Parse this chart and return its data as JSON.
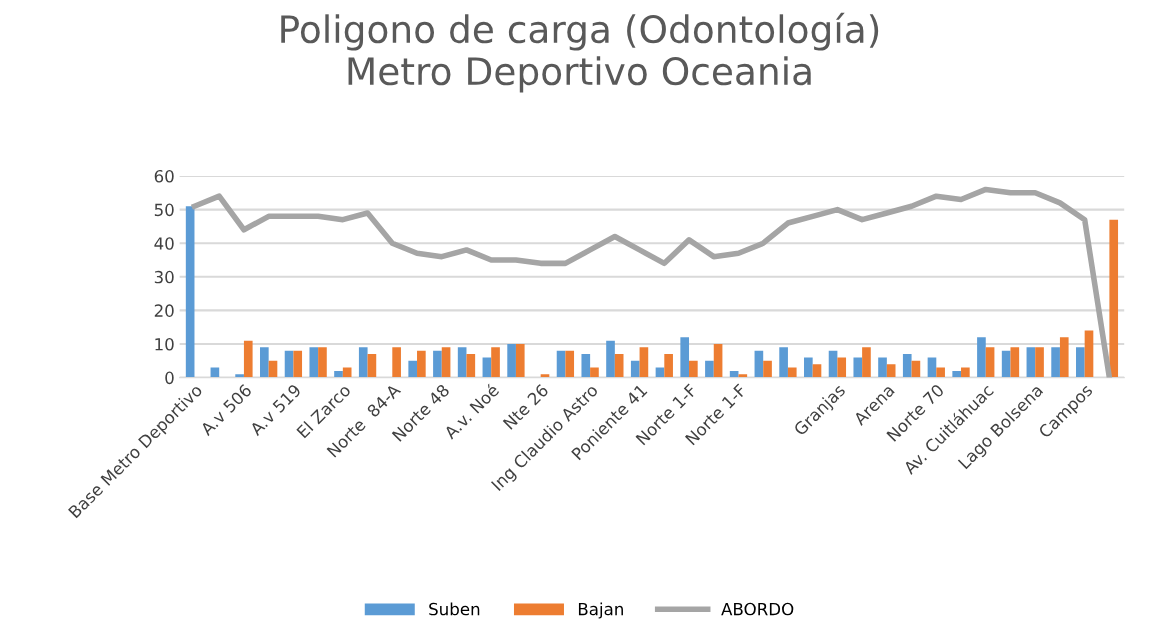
{
  "chart_data": {
    "type": "bar",
    "title": "Poligono de carga (Odontología)\nMetro Deportivo Oceania",
    "categories": [
      "Base Metro Deportivo",
      null,
      "A.v 506",
      null,
      "A.v 519",
      null,
      "El Zarco",
      null,
      "Norte  84-A",
      null,
      "Norte 48",
      null,
      "A.v. Noé",
      null,
      "Nte 26",
      null,
      "Ing Claudio Astro",
      null,
      "Poniente 41",
      null,
      "Norte 1-F",
      null,
      "Norte 1-F",
      null,
      null,
      null,
      "Granjas",
      null,
      "Arena",
      null,
      "Norte 70",
      null,
      "Av. Cuitláhuac",
      null,
      "Lago Bolsena",
      null,
      "Campos",
      null
    ],
    "series": [
      {
        "name": "Suben",
        "color": "#5b9bd5",
        "values": [
          51,
          3,
          1,
          9,
          8,
          9,
          2,
          9,
          0,
          5,
          8,
          9,
          6,
          10,
          0,
          8,
          7,
          11,
          5,
          3,
          12,
          5,
          2,
          8,
          9,
          6,
          8,
          6,
          6,
          7,
          6,
          2,
          12,
          8,
          9,
          9,
          9,
          0
        ]
      },
      {
        "name": "Bajan",
        "color": "#ed7d31",
        "values": [
          0,
          0,
          11,
          5,
          8,
          9,
          3,
          7,
          9,
          8,
          9,
          7,
          9,
          10,
          1,
          8,
          3,
          7,
          9,
          7,
          5,
          10,
          1,
          5,
          3,
          4,
          6,
          9,
          4,
          5,
          3,
          3,
          9,
          9,
          9,
          12,
          14,
          47
        ]
      },
      {
        "name": "ABORDO",
        "type": "line",
        "color": "#a5a5a5",
        "values": [
          51,
          54,
          44,
          48,
          48,
          48,
          47,
          49,
          40,
          37,
          36,
          38,
          35,
          35,
          34,
          34,
          38,
          42,
          38,
          34,
          41,
          36,
          37,
          40,
          46,
          48,
          50,
          47,
          49,
          51,
          54,
          53,
          56,
          55,
          55,
          52,
          47,
          0
        ]
      }
    ],
    "ylim": [
      0,
      60
    ],
    "yticks": [
      0,
      10,
      20,
      30,
      40,
      50,
      60
    ],
    "grid": "y",
    "legend": "bottom"
  }
}
